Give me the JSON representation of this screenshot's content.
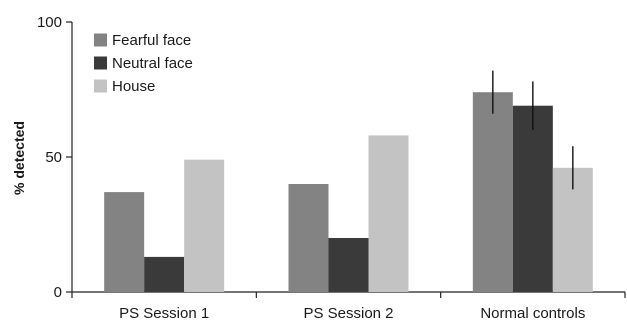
{
  "chart_data": {
    "type": "bar",
    "categories": [
      "PS Session 1",
      "PS Session 2",
      "Normal controls"
    ],
    "series": [
      {
        "name": "Fearful face",
        "color": "#838383",
        "values": [
          37,
          40,
          74
        ],
        "errors": [
          null,
          null,
          8
        ]
      },
      {
        "name": "Neutral face",
        "color": "#3a3a3a",
        "values": [
          13,
          20,
          69
        ],
        "errors": [
          null,
          null,
          9
        ]
      },
      {
        "name": "House",
        "color": "#c3c3c3",
        "values": [
          49,
          58,
          46
        ],
        "errors": [
          null,
          null,
          8
        ]
      }
    ],
    "ylabel": "% detected",
    "ylim": [
      0,
      100
    ],
    "yticks": [
      0,
      50,
      100
    ],
    "legend_position": "top-left",
    "grid": false
  }
}
